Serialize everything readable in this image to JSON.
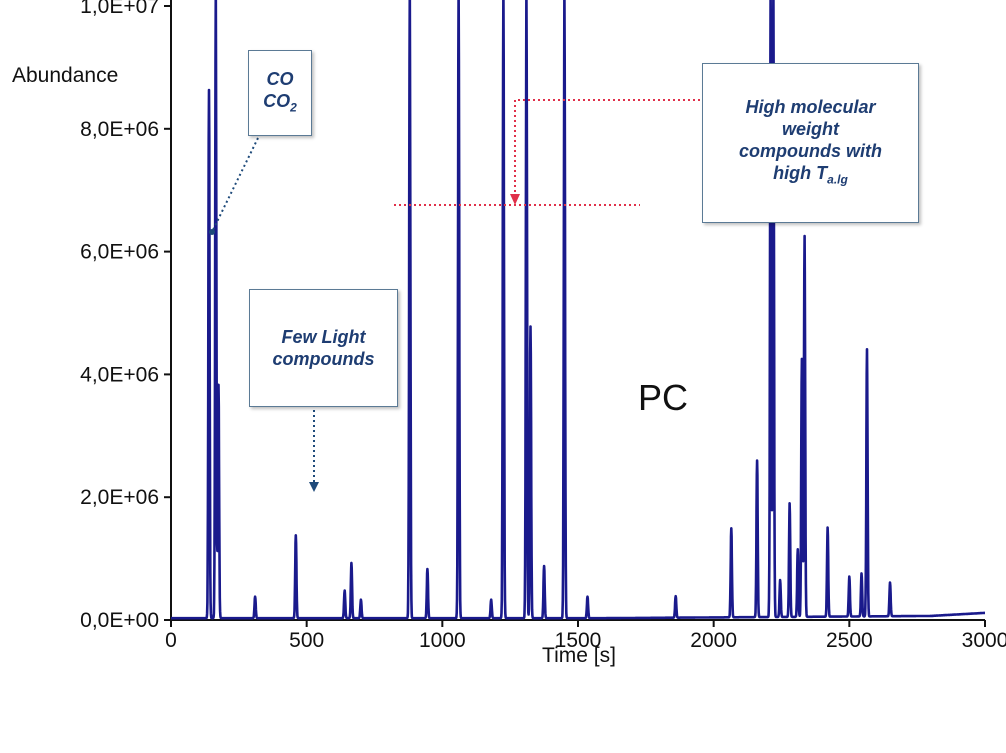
{
  "chart_data": {
    "type": "line",
    "xlabel": "Time [s]",
    "ylabel": "Abundance",
    "xlim": [
      0,
      3000
    ],
    "ylim": [
      0,
      10000000
    ],
    "x_ticks": [
      0,
      500,
      1000,
      1500,
      2000,
      2500,
      3000
    ],
    "x_tick_labels": [
      "0",
      "500",
      "1000",
      "1500",
      "2000",
      "2500",
      "3000"
    ],
    "y_ticks": [
      0,
      2000000,
      4000000,
      6000000,
      8000000,
      10000000
    ],
    "y_tick_labels": [
      "0,0E+00",
      "2,0E+06",
      "4,0E+06",
      "6,0E+06",
      "8,0E+06",
      "1,0E+07"
    ],
    "grid": false,
    "legend": "none",
    "line_color": "#1a1a8c",
    "panel_label": "PC",
    "baseline": 30000,
    "peaks": [
      [
        140,
        8600000
      ],
      [
        165,
        10000000
      ],
      [
        175,
        3800000
      ],
      [
        310,
        350000
      ],
      [
        460,
        1350000
      ],
      [
        640,
        450000
      ],
      [
        665,
        900000
      ],
      [
        700,
        300000
      ],
      [
        880,
        10000000
      ],
      [
        945,
        800000
      ],
      [
        1060,
        10000000
      ],
      [
        1180,
        300000
      ],
      [
        1225,
        10000000
      ],
      [
        1310,
        10000000
      ],
      [
        1325,
        4750000
      ],
      [
        1375,
        850000
      ],
      [
        1450,
        10000000
      ],
      [
        1535,
        350000
      ],
      [
        1860,
        350000
      ],
      [
        2065,
        1450000
      ],
      [
        2160,
        2550000
      ],
      [
        2210,
        10000000
      ],
      [
        2220,
        10000000
      ],
      [
        2245,
        600000
      ],
      [
        2280,
        1850000
      ],
      [
        2310,
        1100000
      ],
      [
        2325,
        4200000
      ],
      [
        2335,
        6200000
      ],
      [
        2420,
        1450000
      ],
      [
        2500,
        650000
      ],
      [
        2545,
        700000
      ],
      [
        2565,
        4350000
      ],
      [
        2650,
        550000
      ]
    ],
    "annotations": {
      "co_box": {
        "line1": "CO",
        "line2_main": "CO",
        "line2_sub": "2"
      },
      "light_box": {
        "line1": "Few Light",
        "line2": "compounds"
      },
      "hmw_box": {
        "line1": "High molecular",
        "line2": "weight",
        "line3": "compounds with",
        "line4_main": "high T",
        "line4_sub": "a.lg"
      }
    },
    "annotation_colors": {
      "text": "#1e3d72",
      "arrow_blue": "#1e4a7a",
      "arrow_red": "#e0304a"
    }
  }
}
